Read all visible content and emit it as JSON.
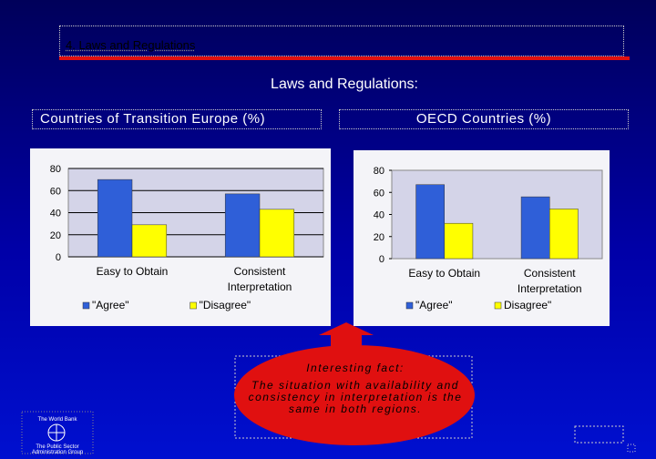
{
  "header": {
    "title": "4. Laws and Regulations"
  },
  "slide_title": "Laws and Regulations:",
  "panel_titles": [
    "Countries of Transition Europe (%)",
    "OECD Countries (%)"
  ],
  "chart_data": [
    {
      "type": "bar",
      "categories": [
        "Easy to Obtain",
        "Consistent Interpretation"
      ],
      "series": [
        {
          "name": "\"Agree\"",
          "color": "#2f5fd8",
          "values": [
            70,
            57
          ]
        },
        {
          "name": "\"Disagree\"",
          "color": "#ffff00",
          "values": [
            29,
            43
          ]
        }
      ],
      "ylim": [
        0,
        80
      ],
      "yticks": [
        0,
        20,
        40,
        60,
        80
      ],
      "grid": true,
      "legend": "bottom"
    },
    {
      "type": "bar",
      "categories": [
        "Easy to Obtain",
        "Consistent Interpretation"
      ],
      "series": [
        {
          "name": "\"Agree\"",
          "color": "#2f5fd8",
          "values": [
            67,
            56
          ]
        },
        {
          "name": "Disagree\"",
          "color": "#ffff00",
          "values": [
            32,
            45
          ]
        }
      ],
      "ylim": [
        0,
        80
      ],
      "yticks": [
        0,
        20,
        40,
        60,
        80
      ],
      "grid": false,
      "legend": "bottom"
    }
  ],
  "callout": {
    "heading": "Interesting fact:",
    "text": "The situation with availability and consistency in interpretation is the same in both regions."
  },
  "logo": {
    "top": "The World Bank",
    "bottom": "The Public Sector Administration Group"
  }
}
